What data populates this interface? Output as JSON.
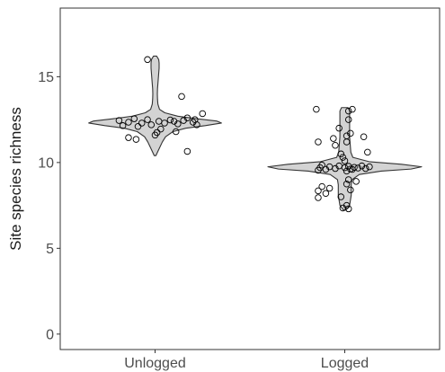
{
  "chart_data": {
    "type": "violin",
    "ylabel": "Site species richness",
    "xlabel": "",
    "ylim": [
      -0.9,
      19.0
    ],
    "yticks": [
      0,
      5,
      10,
      15
    ],
    "categories": [
      "Unlogged",
      "Logged"
    ],
    "grid": false,
    "legend": "none",
    "fill_color": "#d3d3d3",
    "outline_color": "#333333",
    "point_edge_color": "#000000",
    "groups": [
      {
        "name": "Unlogged",
        "violin_profile": [
          [
            10.4,
            0.01
          ],
          [
            10.6,
            0.03
          ],
          [
            10.9,
            0.06
          ],
          [
            11.2,
            0.09
          ],
          [
            11.5,
            0.13
          ],
          [
            11.8,
            0.22
          ],
          [
            12.0,
            0.38
          ],
          [
            12.15,
            0.62
          ],
          [
            12.3,
            0.82
          ],
          [
            12.42,
            0.76
          ],
          [
            12.55,
            0.52
          ],
          [
            12.7,
            0.28
          ],
          [
            12.9,
            0.12
          ],
          [
            13.1,
            0.055
          ],
          [
            13.4,
            0.035
          ],
          [
            13.7,
            0.03
          ],
          [
            14.0,
            0.028
          ],
          [
            14.3,
            0.03
          ],
          [
            14.6,
            0.035
          ],
          [
            14.9,
            0.04
          ],
          [
            15.2,
            0.045
          ],
          [
            15.5,
            0.05
          ],
          [
            15.8,
            0.05
          ],
          [
            16.0,
            0.045
          ],
          [
            16.2,
            0.02
          ]
        ],
        "points": [
          [
            16.0,
            -0.04
          ],
          [
            13.85,
            0.14
          ],
          [
            12.85,
            0.25
          ],
          [
            12.6,
            0.17
          ],
          [
            12.55,
            -0.11
          ],
          [
            12.5,
            0.21
          ],
          [
            12.5,
            -0.04
          ],
          [
            12.48,
            0.08
          ],
          [
            12.45,
            0.15
          ],
          [
            12.45,
            -0.19
          ],
          [
            12.4,
            0.02
          ],
          [
            12.4,
            0.1
          ],
          [
            12.35,
            -0.14
          ],
          [
            12.35,
            0.2
          ],
          [
            12.3,
            0.05
          ],
          [
            12.3,
            -0.07
          ],
          [
            12.25,
            0.12
          ],
          [
            12.2,
            -0.02
          ],
          [
            12.2,
            0.22
          ],
          [
            12.15,
            -0.17
          ],
          [
            12.1,
            -0.09
          ],
          [
            11.95,
            0.03
          ],
          [
            11.8,
            0.11
          ],
          [
            11.75,
            0.01
          ],
          [
            11.6,
            0.0
          ],
          [
            11.45,
            -0.14
          ],
          [
            11.35,
            -0.1
          ],
          [
            10.65,
            0.17
          ]
        ]
      },
      {
        "name": "Logged",
        "violin_profile": [
          [
            7.25,
            0.02
          ],
          [
            7.5,
            0.06
          ],
          [
            7.8,
            0.07
          ],
          [
            8.1,
            0.08
          ],
          [
            8.4,
            0.08
          ],
          [
            8.7,
            0.08
          ],
          [
            9.0,
            0.09
          ],
          [
            9.3,
            0.18
          ],
          [
            9.5,
            0.45
          ],
          [
            9.62,
            0.82
          ],
          [
            9.75,
            0.95
          ],
          [
            9.9,
            0.7
          ],
          [
            10.05,
            0.3
          ],
          [
            10.3,
            0.1
          ],
          [
            10.6,
            0.075
          ],
          [
            10.9,
            0.07
          ],
          [
            11.2,
            0.065
          ],
          [
            11.5,
            0.06
          ],
          [
            11.8,
            0.06
          ],
          [
            12.1,
            0.06
          ],
          [
            12.4,
            0.06
          ],
          [
            12.7,
            0.06
          ],
          [
            13.0,
            0.06
          ],
          [
            13.2,
            0.04
          ]
        ],
        "points": [
          [
            13.1,
            -0.15
          ],
          [
            13.1,
            0.04
          ],
          [
            13.0,
            0.02
          ],
          [
            12.5,
            0.02
          ],
          [
            12.0,
            -0.03
          ],
          [
            11.7,
            0.03
          ],
          [
            11.55,
            0.01
          ],
          [
            11.5,
            0.1
          ],
          [
            11.4,
            -0.06
          ],
          [
            11.2,
            -0.14
          ],
          [
            11.2,
            0.01
          ],
          [
            11.0,
            -0.05
          ],
          [
            10.6,
            0.12
          ],
          [
            10.5,
            -0.02
          ],
          [
            10.3,
            -0.01
          ],
          [
            10.1,
            0.0
          ],
          [
            9.85,
            -0.12
          ],
          [
            9.8,
            -0.03
          ],
          [
            9.8,
            0.09
          ],
          [
            9.78,
            0.02
          ],
          [
            9.75,
            -0.08
          ],
          [
            9.75,
            0.13
          ],
          [
            9.72,
            0.05
          ],
          [
            9.7,
            -0.13
          ],
          [
            9.7,
            0.0
          ],
          [
            9.68,
            0.07
          ],
          [
            9.65,
            -0.05
          ],
          [
            9.65,
            0.11
          ],
          [
            9.62,
            0.03
          ],
          [
            9.6,
            -0.1
          ],
          [
            9.6,
            0.04
          ],
          [
            9.55,
            -0.14
          ],
          [
            9.5,
            0.01
          ],
          [
            9.0,
            0.02
          ],
          [
            8.9,
            0.06
          ],
          [
            8.75,
            0.01
          ],
          [
            8.6,
            -0.12
          ],
          [
            8.5,
            -0.08
          ],
          [
            8.4,
            0.03
          ],
          [
            8.35,
            -0.14
          ],
          [
            8.2,
            -0.1
          ],
          [
            8.0,
            -0.02
          ],
          [
            7.95,
            -0.14
          ],
          [
            7.5,
            0.01
          ],
          [
            7.35,
            -0.01
          ],
          [
            7.3,
            0.02
          ]
        ]
      }
    ]
  }
}
